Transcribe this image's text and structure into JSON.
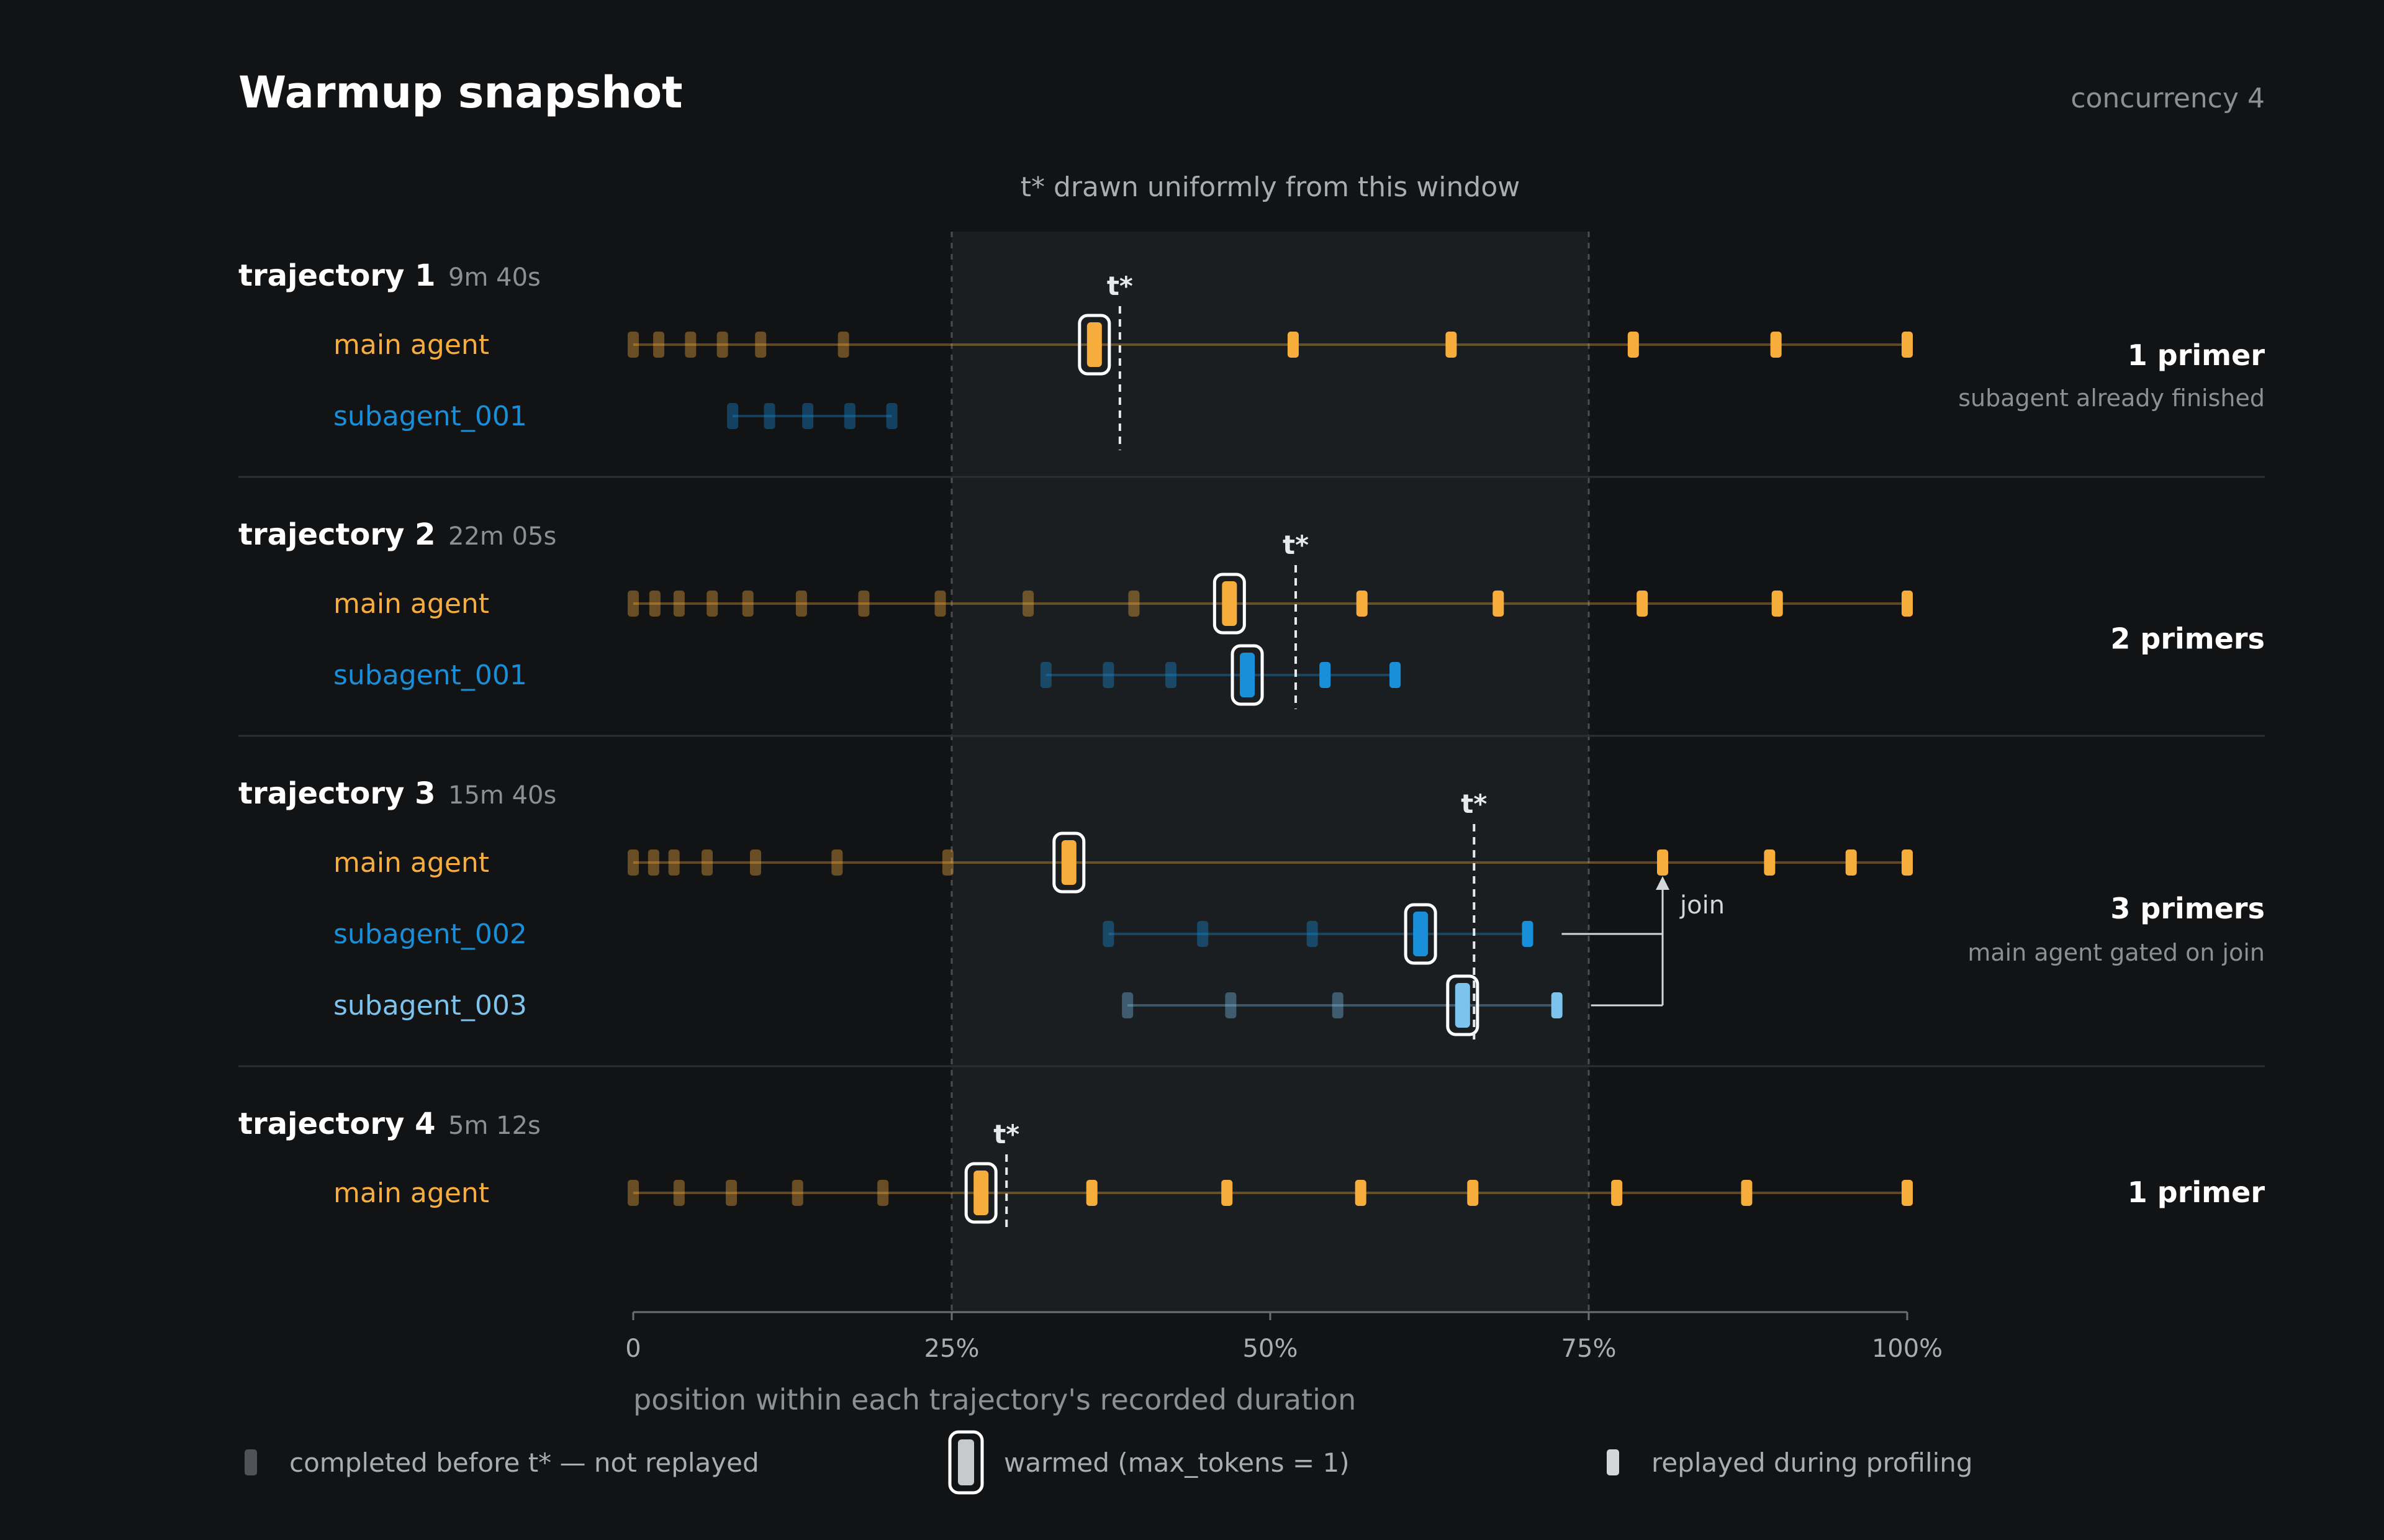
{
  "header": {
    "title": "Warmup snapshot",
    "concurrency_label": "concurrency 4"
  },
  "window": {
    "label": "t* drawn uniformly from this window",
    "start_pct": 25,
    "end_pct": 75
  },
  "colors": {
    "main": "#f6ad3c",
    "sub": "#1a8fd9",
    "sub_light": "#7cc3ee",
    "text": "#ffffff",
    "muted": "#8c8f94",
    "background": "#121315",
    "window_shade": "#1b1e21"
  },
  "trajectories": [
    {
      "name": "trajectory 1",
      "duration": "9m 40s",
      "t_star_pct": 38.2,
      "primer_label": "1 primer",
      "note": "subagent already finished",
      "lanes": [
        {
          "label": "main agent",
          "color": "main",
          "done": [
            0,
            2,
            4.5,
            7,
            10,
            16.5
          ],
          "warmed": [
            36.2
          ],
          "replay": [
            51.8,
            64.2,
            78.5,
            89.7,
            100
          ]
        },
        {
          "label": "subagent_001",
          "color": "sub",
          "done": [
            7.8,
            10.7,
            13.7,
            17,
            20.3
          ],
          "warmed": [],
          "replay": []
        }
      ]
    },
    {
      "name": "trajectory 2",
      "duration": "22m 05s",
      "t_star_pct": 52,
      "primer_label": "2 primers",
      "note": "",
      "lanes": [
        {
          "label": "main agent",
          "color": "main",
          "done": [
            0,
            1.7,
            3.6,
            6.2,
            9,
            13.2,
            18.1,
            24.1,
            31,
            39.3
          ],
          "warmed": [
            46.8
          ],
          "replay": [
            57.2,
            67.9,
            79.2,
            89.8,
            100
          ]
        },
        {
          "label": "subagent_001",
          "color": "sub",
          "done": [
            32.4,
            37.3,
            42.2
          ],
          "warmed": [
            48.2
          ],
          "replay": [
            54.3,
            59.8
          ]
        }
      ]
    },
    {
      "name": "trajectory 3",
      "duration": "15m 40s",
      "t_star_pct": 66,
      "primer_label": "3 primers",
      "note": "main agent gated on join",
      "join_label": "join",
      "join_pct": 80.8,
      "lanes": [
        {
          "label": "main agent",
          "color": "main",
          "done": [
            0,
            1.6,
            3.2,
            5.8,
            9.6,
            16,
            24.7
          ],
          "warmed": [
            34.2
          ],
          "replay": [
            80.8,
            89.2,
            95.6,
            100
          ]
        },
        {
          "label": "subagent_002",
          "color": "sub",
          "done": [
            37.3,
            44.7,
            53.3
          ],
          "warmed": [
            61.8
          ],
          "replay": [
            70.2
          ]
        },
        {
          "label": "subagent_003",
          "color": "sub_light",
          "done": [
            38.8,
            46.9,
            55.3
          ],
          "warmed": [
            65.1
          ],
          "replay": [
            72.5
          ]
        }
      ]
    },
    {
      "name": "trajectory 4",
      "duration": "5m 12s",
      "t_star_pct": 29.3,
      "primer_label": "1 primer",
      "note": "",
      "lanes": [
        {
          "label": "main agent",
          "color": "main",
          "done": [
            0,
            3.6,
            7.7,
            12.9,
            19.6
          ],
          "warmed": [
            27.3
          ],
          "replay": [
            36,
            46.6,
            57.1,
            65.9,
            77.2,
            87.4,
            100
          ]
        }
      ]
    }
  ],
  "axis": {
    "ticks": [
      {
        "pct": 0,
        "label": "0"
      },
      {
        "pct": 25,
        "label": "25%"
      },
      {
        "pct": 50,
        "label": "50%"
      },
      {
        "pct": 75,
        "label": "75%"
      },
      {
        "pct": 100,
        "label": "100%"
      }
    ],
    "title": "position within each trajectory's recorded duration"
  },
  "t_star_label": "t*",
  "legend": {
    "done": "completed before t* — not replayed",
    "warmed": "warmed (max_tokens = 1)",
    "replay": "replayed during profiling"
  }
}
